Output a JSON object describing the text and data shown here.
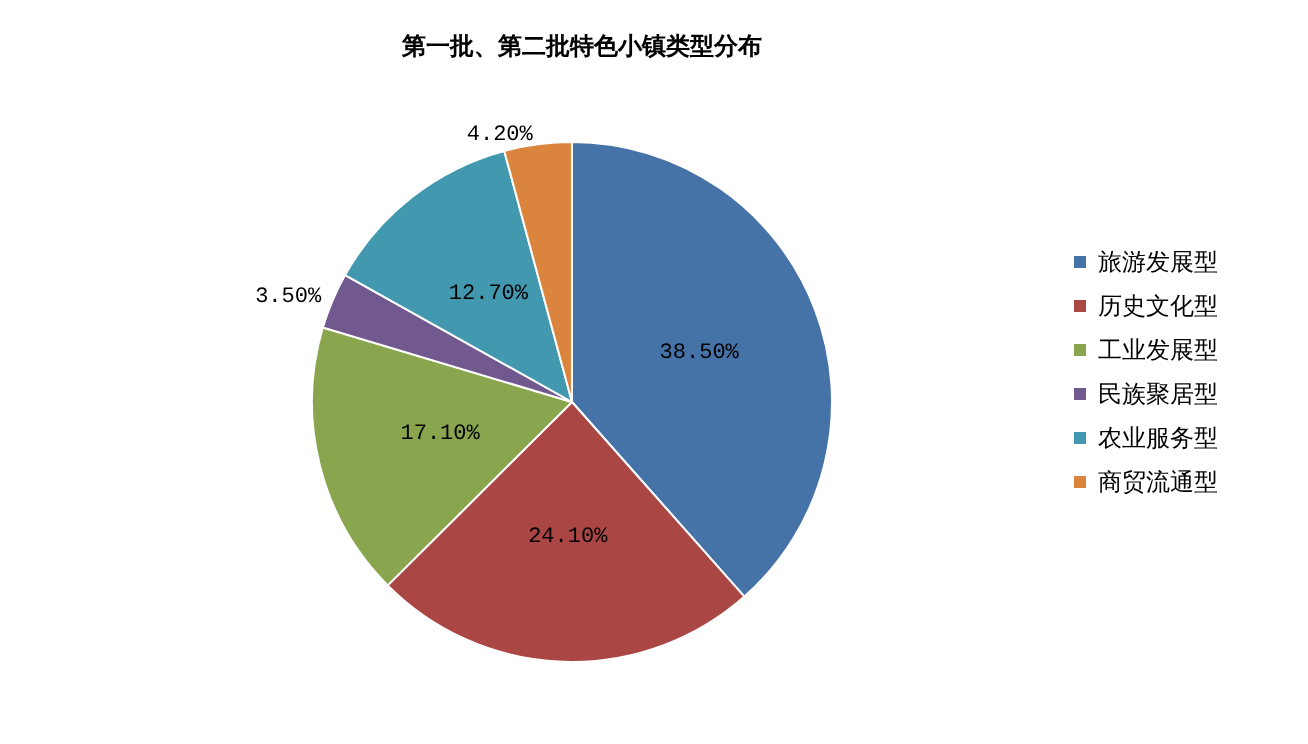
{
  "chart_data": {
    "type": "pie",
    "title": "第一批、第二批特色小镇类型分布",
    "categories": [
      "旅游发展型",
      "历史文化型",
      "工业发展型",
      "民族聚居型",
      "农业服务型",
      "商贸流通型"
    ],
    "values": [
      38.5,
      24.1,
      17.1,
      3.5,
      12.7,
      4.2
    ],
    "value_labels": [
      "38.50%",
      "24.10%",
      "17.10%",
      "3.50%",
      "12.70%",
      "4.20%"
    ],
    "colors": [
      "#4572a7",
      "#aa4643",
      "#89a54e",
      "#71588f",
      "#4198af",
      "#db843d"
    ],
    "legend": "right"
  }
}
